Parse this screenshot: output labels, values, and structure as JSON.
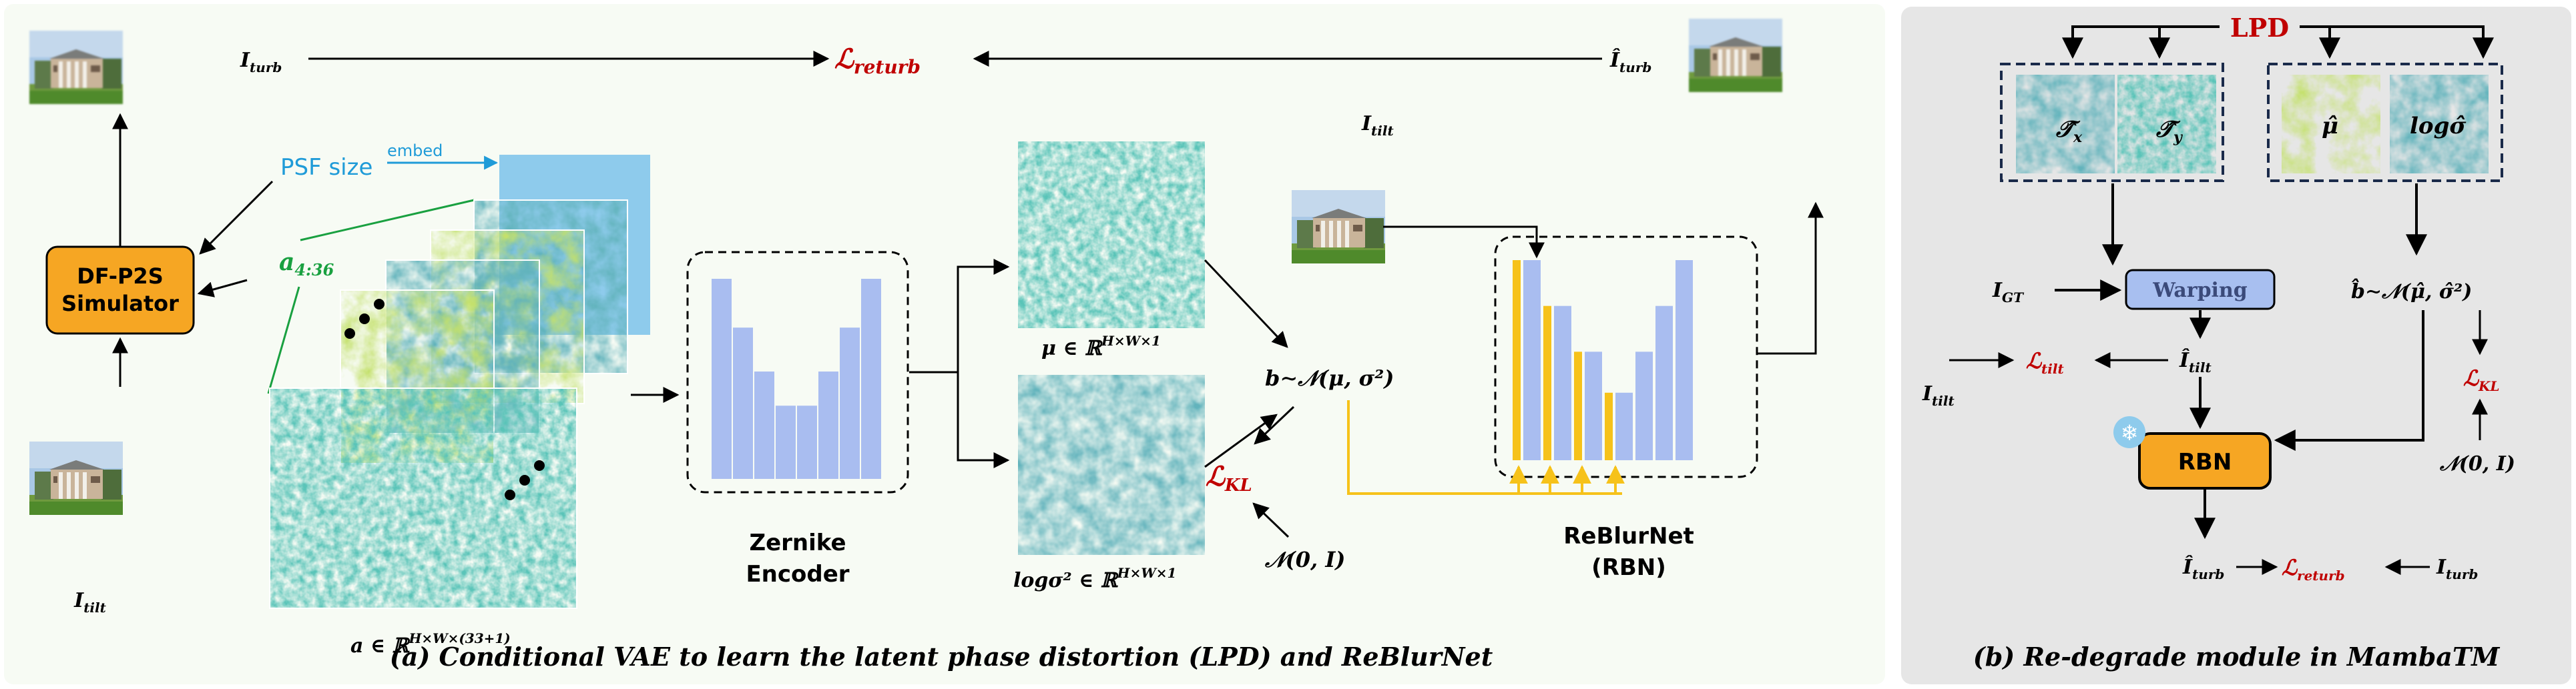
{
  "panel_a": {
    "caption": "(a) Conditional VAE to learn the latent phase distortion (LPD) and ReBlurNet",
    "i_turb": "I",
    "i_turb_sub": "turb",
    "i_turb_hat": "Î",
    "i_turb_hat_sub": "turb",
    "l_returb": "ℒ",
    "l_returb_sub": "returb",
    "i_tilt_left": "I",
    "i_tilt_left_sub": "tilt",
    "i_tilt_mid": "I",
    "i_tilt_mid_sub": "tilt",
    "simulator_line1": "DF-P2S",
    "simulator_line2": "Simulator",
    "psf_size": "PSF size",
    "embed": "embed",
    "a_label": "a",
    "a_label_sub": "4:36",
    "a_domain": "a ∈ ℝ",
    "a_domain_sup": "H×W×(33+1)",
    "encoder_line1": "Zernike",
    "encoder_line2": "Encoder",
    "mu_domain": "μ ∈ ℝ",
    "mu_domain_sup": "H×W×1",
    "logsig_domain": "logσ² ∈ ℝ",
    "logsig_domain_sup": "H×W×1",
    "b_sample": "b∼𝒩(μ, σ²)",
    "l_kl": "ℒ",
    "l_kl_sub": "KL",
    "normal_prior": "𝒩(0, I)",
    "rbn_line1": "ReBlurNet",
    "rbn_line2": "(RBN)",
    "encoder_bars": [
      0.82,
      0.62,
      0.44,
      0.3,
      0.3,
      0.44,
      0.62,
      0.82
    ],
    "rbn_bars": [
      {
        "color": "yellow",
        "value": 0.83
      },
      {
        "color": "blue",
        "value": 0.83
      },
      {
        "color": "yellow",
        "value": 0.64
      },
      {
        "color": "blue",
        "value": 0.64
      },
      {
        "color": "yellow",
        "value": 0.45
      },
      {
        "color": "blue",
        "value": 0.45
      },
      {
        "color": "yellow",
        "value": 0.28
      },
      {
        "color": "blue",
        "value": 0.28
      },
      {
        "color": "blue",
        "value": 0.45
      },
      {
        "color": "blue",
        "value": 0.64
      },
      {
        "color": "blue",
        "value": 0.83
      }
    ]
  },
  "panel_b": {
    "caption": "(b) Re-degrade module in MambaTM",
    "lpd": "LPD",
    "tx": "𝒯̂",
    "tx_sub": "x",
    "ty": "𝒯̂",
    "ty_sub": "y",
    "mu_hat": "μ̂",
    "log_sig_hat": "logσ̂",
    "i_gt": "I",
    "i_gt_sub": "GT",
    "warping": "Warping",
    "b_hat": "b̂∼𝒩(μ̂, σ̂²)",
    "l_tilt": "ℒ",
    "l_tilt_sub": "tilt",
    "i_tilt_hat": "Î",
    "i_tilt_hat_sub": "tilt",
    "i_tilt": "I",
    "i_tilt_sub": "tilt",
    "l_kl": "ℒ",
    "l_kl_sub": "KL",
    "rbn": "RBN",
    "normal_prior": "𝒩(0, I)",
    "i_turb_hat": "Î",
    "i_turb_hat_sub": "turb",
    "l_returb": "ℒ",
    "l_returb_sub": "returb",
    "i_turb": "I",
    "i_turb_sub": "turb"
  },
  "colors": {
    "panel_a_bg": "#f7fbf4",
    "panel_b_bg": "#e6e6e6",
    "red": "#c00000",
    "blue_text": "#1f9bd8",
    "green": "#19a040",
    "orange": "#f6a623",
    "bar_blue": "#a9bdf0",
    "bar_yellow": "#f6c21a",
    "warping_fill": "#a8bff0"
  }
}
